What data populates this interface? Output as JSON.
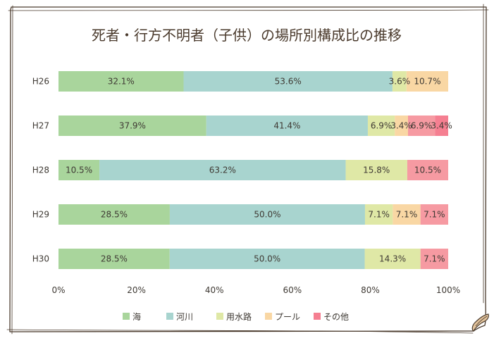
{
  "chart_data": {
    "type": "bar",
    "orientation": "horizontal",
    "stacked": "percent",
    "title": "死者・行方不明者（子供）の場所別構成比の推移",
    "categories": [
      "H26",
      "H27",
      "H28",
      "H29",
      "H30"
    ],
    "xlim": [
      0,
      100
    ],
    "x_ticks": [
      "0%",
      "20%",
      "40%",
      "60%",
      "80%",
      "100%"
    ],
    "legend_position": "bottom",
    "series": [
      {
        "name": "海",
        "color": "#a9d59c",
        "values": [
          32.1,
          37.9,
          10.5,
          28.5,
          28.5
        ],
        "labels": [
          "32.1%",
          "37.9%",
          "10.5%",
          "28.5%",
          "28.5%"
        ]
      },
      {
        "name": "河川",
        "color": "#a8d4cf",
        "values": [
          53.6,
          41.4,
          63.2,
          50.0,
          50.0
        ],
        "labels": [
          "53.6%",
          "41.4%",
          "63.2%",
          "50.0%",
          "50.0%"
        ]
      },
      {
        "name": "用水路",
        "color": "#dfe8a6",
        "values": [
          3.6,
          6.9,
          15.8,
          7.1,
          14.3
        ],
        "labels": [
          "3.6%",
          "6.9%",
          "15.8%",
          "7.1%",
          "14.3%"
        ]
      },
      {
        "name": "プール",
        "color": "#f9d7a4",
        "values": [
          10.7,
          3.4,
          0,
          7.1,
          0
        ],
        "labels": [
          "10.7%",
          "3.4%",
          "",
          "7.1%",
          ""
        ]
      },
      {
        "name": "その他",
        "color": "#f69aa2",
        "values": [
          0,
          6.9,
          10.5,
          7.1,
          7.1
        ],
        "labels": [
          "",
          "6.9%",
          "10.5%",
          "7.1%",
          "7.1%"
        ]
      },
      {
        "name": "",
        "color": "#f57f91",
        "values": [
          0,
          3.4,
          0,
          0,
          0
        ],
        "labels": [
          "",
          "3.4%",
          "",
          "",
          ""
        ]
      }
    ],
    "legend": [
      {
        "label": "海",
        "color": "#a9d59c"
      },
      {
        "label": "河川",
        "color": "#a8d4cf"
      },
      {
        "label": "用水路",
        "color": "#dfe8a6"
      },
      {
        "label": "プール",
        "color": "#f9d7a4"
      },
      {
        "label": "その他",
        "color": "#f57f91"
      }
    ]
  },
  "colors": {
    "frame": "#4a3a2c",
    "text": "#3f3a34",
    "paper": "#ffffff",
    "curl": "#e2c39c"
  }
}
